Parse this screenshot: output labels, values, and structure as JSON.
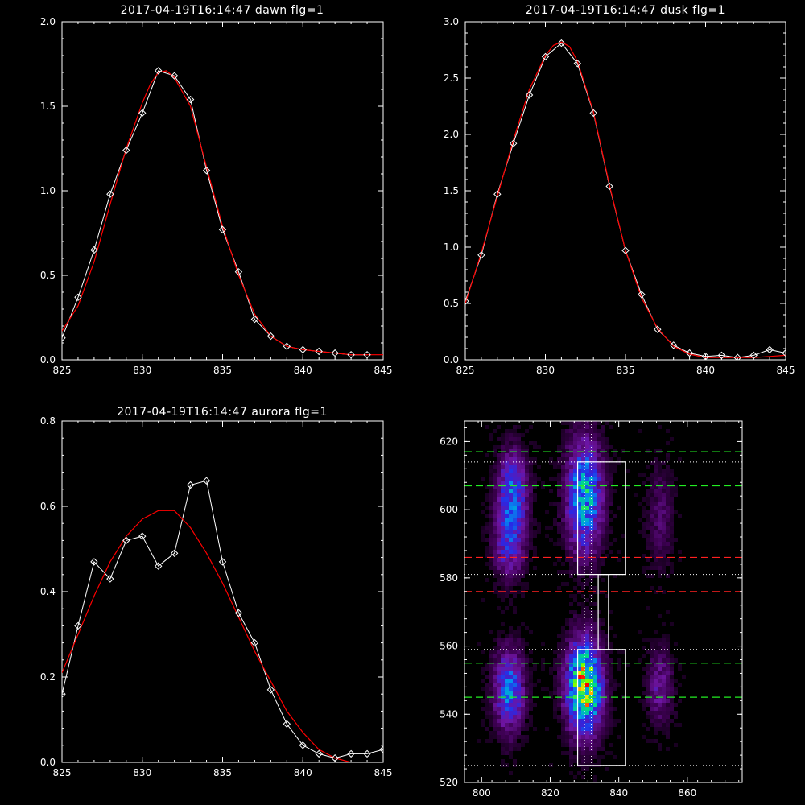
{
  "chart_data": [
    {
      "type": "line",
      "title": "2017-04-19T16:14:47 dawn flg=1",
      "xlim": [
        825,
        845
      ],
      "ylim": [
        0,
        2.0
      ],
      "xticks": [
        825,
        830,
        835,
        840,
        845
      ],
      "xtick_labels": [
        "825",
        "830",
        "835",
        "840",
        "845"
      ],
      "yticks": [
        0,
        0.5,
        1.0,
        1.5,
        2.0
      ],
      "ytick_labels": [
        "0.0",
        "0.5",
        "1.0",
        "1.5",
        "2.0"
      ],
      "series": [
        {
          "kind": "observed",
          "color": "#ffffff",
          "marker": "diamond",
          "x": [
            825,
            826,
            827,
            828,
            829,
            830,
            831,
            832,
            833,
            834,
            835,
            836,
            837,
            838,
            839,
            840,
            841,
            842,
            843,
            844
          ],
          "y": [
            0.13,
            0.37,
            0.65,
            0.98,
            1.24,
            1.46,
            1.71,
            1.68,
            1.54,
            1.12,
            0.77,
            0.52,
            0.24,
            0.14,
            0.08,
            0.06,
            0.05,
            0.04,
            0.03,
            0.03
          ]
        },
        {
          "kind": "fit",
          "color": "#ff0000",
          "x": [
            825,
            826,
            827,
            828,
            829,
            830,
            830.5,
            831,
            831.5,
            832,
            833,
            834,
            835,
            836,
            837,
            838,
            839,
            840,
            841,
            842,
            843,
            844,
            845
          ],
          "y": [
            0.17,
            0.32,
            0.58,
            0.92,
            1.25,
            1.52,
            1.63,
            1.7,
            1.71,
            1.67,
            1.5,
            1.14,
            0.79,
            0.5,
            0.27,
            0.14,
            0.08,
            0.06,
            0.05,
            0.04,
            0.03,
            0.03,
            0.03
          ]
        }
      ]
    },
    {
      "type": "line",
      "title": "2017-04-19T16:14:47 dusk flg=1",
      "xlim": [
        825,
        845
      ],
      "ylim": [
        0,
        3.0
      ],
      "xticks": [
        825,
        830,
        835,
        840,
        845
      ],
      "xtick_labels": [
        "825",
        "830",
        "835",
        "840",
        "845"
      ],
      "yticks": [
        0,
        0.5,
        1.0,
        1.5,
        2.0,
        2.5,
        3.0
      ],
      "ytick_labels": [
        "0.0",
        "0.5",
        "1.0",
        "1.5",
        "2.0",
        "2.5",
        "3.0"
      ],
      "series": [
        {
          "kind": "observed",
          "color": "#ffffff",
          "marker": "diamond",
          "x": [
            825,
            826,
            827,
            828,
            829,
            830,
            831,
            832,
            833,
            834,
            835,
            836,
            837,
            838,
            839,
            840,
            841,
            842,
            843,
            844,
            845
          ],
          "y": [
            0.52,
            0.93,
            1.47,
            1.92,
            2.35,
            2.69,
            2.81,
            2.63,
            2.19,
            1.54,
            0.97,
            0.58,
            0.27,
            0.13,
            0.06,
            0.03,
            0.04,
            0.02,
            0.04,
            0.09,
            0.06
          ]
        },
        {
          "kind": "fit",
          "color": "#ff0000",
          "x": [
            825,
            826,
            827,
            828,
            829,
            830,
            830.5,
            831,
            831.5,
            832,
            833,
            834,
            835,
            836,
            837,
            838,
            839,
            840,
            841,
            842,
            843,
            844,
            845
          ],
          "y": [
            0.5,
            0.95,
            1.45,
            1.95,
            2.4,
            2.7,
            2.79,
            2.82,
            2.78,
            2.65,
            2.2,
            1.55,
            0.97,
            0.55,
            0.28,
            0.12,
            0.05,
            0.02,
            0.02,
            0.02,
            0.02,
            0.03,
            0.04
          ]
        }
      ]
    },
    {
      "type": "line",
      "title": "2017-04-19T16:14:47 aurora flg=1",
      "xlim": [
        825,
        845
      ],
      "ylim": [
        0,
        0.8
      ],
      "xticks": [
        825,
        830,
        835,
        840,
        845
      ],
      "xtick_labels": [
        "825",
        "830",
        "835",
        "840",
        "845"
      ],
      "yticks": [
        0,
        0.2,
        0.4,
        0.6,
        0.8
      ],
      "ytick_labels": [
        "0.0",
        "0.2",
        "0.4",
        "0.6",
        "0.8"
      ],
      "series": [
        {
          "kind": "observed",
          "color": "#ffffff",
          "marker": "diamond",
          "x": [
            825,
            826,
            827,
            828,
            829,
            830,
            831,
            832,
            833,
            834,
            835,
            836,
            837,
            838,
            839,
            840,
            841,
            842,
            843,
            844,
            845
          ],
          "y": [
            0.16,
            0.32,
            0.47,
            0.43,
            0.52,
            0.53,
            0.46,
            0.49,
            0.65,
            0.66,
            0.47,
            0.35,
            0.28,
            0.17,
            0.09,
            0.04,
            0.02,
            0.01,
            0.02,
            0.02,
            0.03
          ]
        },
        {
          "kind": "fit",
          "color": "#ff0000",
          "x": [
            825,
            826,
            827,
            828,
            829,
            830,
            831,
            831.5,
            832,
            833,
            834,
            835,
            836,
            837,
            838,
            839,
            840,
            841,
            842,
            843,
            843.5
          ],
          "y": [
            0.21,
            0.3,
            0.39,
            0.47,
            0.53,
            0.57,
            0.59,
            0.59,
            0.59,
            0.55,
            0.49,
            0.42,
            0.34,
            0.26,
            0.19,
            0.12,
            0.07,
            0.03,
            0.01,
            0.0,
            0.0
          ]
        }
      ]
    },
    {
      "type": "heatmap",
      "xlim": [
        795,
        876
      ],
      "ylim": [
        520,
        626
      ],
      "xticks": [
        800,
        820,
        840,
        860
      ],
      "xtick_labels": [
        "800",
        "820",
        "840",
        "860"
      ],
      "yticks": [
        520,
        540,
        560,
        580,
        600,
        620
      ],
      "ytick_labels": [
        "520",
        "540",
        "560",
        "580",
        "600",
        "620"
      ],
      "blobs": [
        {
          "x": 809,
          "y": 605,
          "sx": 3.0,
          "sy": 8,
          "amp": 0.42
        },
        {
          "x": 808,
          "y": 590,
          "sx": 3.0,
          "sy": 7,
          "amp": 0.3
        },
        {
          "x": 830,
          "y": 604,
          "sx": 3.5,
          "sy": 11,
          "amp": 0.58
        },
        {
          "x": 830,
          "y": 548,
          "sx": 3.5,
          "sy": 9,
          "amp": 0.85
        },
        {
          "x": 808,
          "y": 547,
          "sx": 3.0,
          "sy": 8,
          "amp": 0.45
        },
        {
          "x": 852,
          "y": 548,
          "sx": 2.5,
          "sy": 7,
          "amp": 0.22
        },
        {
          "x": 852,
          "y": 598,
          "sx": 2.5,
          "sy": 10,
          "amp": 0.13
        }
      ],
      "boxes": [
        {
          "x0": 828,
          "x1": 842,
          "y0": 581,
          "y1": 614
        },
        {
          "x0": 834,
          "x1": 837,
          "y0": 559,
          "y1": 581
        },
        {
          "x0": 828,
          "x1": 842,
          "y0": 525,
          "y1": 559
        }
      ],
      "green_dashed_y": [
        617,
        607,
        555,
        545
      ],
      "red_dashed_y": [
        586,
        576
      ],
      "white_dotted_y": [
        614,
        581,
        559,
        525
      ],
      "white_dotted_x": [
        830,
        832
      ],
      "colors": {
        "box": "#ffffff",
        "green": "#22ee22",
        "red": "#ff2020",
        "dotted": "#ffffff"
      }
    }
  ]
}
